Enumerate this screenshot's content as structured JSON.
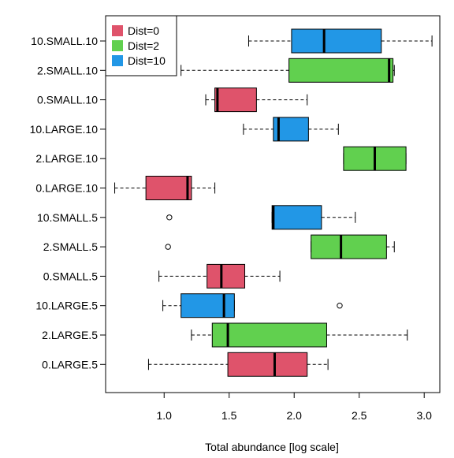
{
  "chart_data": {
    "type": "boxplot",
    "orientation": "horizontal",
    "xlabel": "Total abundance [log scale]",
    "ylabel": "",
    "xlim": [
      0.55,
      3.12
    ],
    "x_ticks": [
      1.0,
      1.5,
      2.0,
      2.5,
      3.0
    ],
    "x_tick_labels": [
      "1.0",
      "1.5",
      "2.0",
      "2.5",
      "3.0"
    ],
    "grid": false,
    "legend_position": "top-left",
    "legend": [
      {
        "label": "Dist=0",
        "color": "#DF536B"
      },
      {
        "label": "Dist=2",
        "color": "#61D04F"
      },
      {
        "label": "Dist=10",
        "color": "#2297E6"
      }
    ],
    "categories": [
      "0.LARGE.5",
      "2.LARGE.5",
      "10.LARGE.5",
      "0.SMALL.5",
      "2.SMALL.5",
      "10.SMALL.5",
      "0.LARGE.10",
      "2.LARGE.10",
      "10.LARGE.10",
      "0.SMALL.10",
      "2.SMALL.10",
      "10.SMALL.10"
    ],
    "boxes": [
      {
        "category": "0.LARGE.5",
        "group": "Dist=0",
        "whisker_low": 0.88,
        "q1": 1.49,
        "median": 1.85,
        "q3": 2.1,
        "whisker_high": 2.26,
        "outliers": []
      },
      {
        "category": "2.LARGE.5",
        "group": "Dist=2",
        "whisker_low": 1.21,
        "q1": 1.37,
        "median": 1.49,
        "q3": 2.25,
        "whisker_high": 2.87,
        "outliers": []
      },
      {
        "category": "10.LARGE.5",
        "group": "Dist=10",
        "whisker_low": 0.99,
        "q1": 1.13,
        "median": 1.46,
        "q3": 1.54,
        "whisker_high": 1.54,
        "outliers": [
          2.35
        ]
      },
      {
        "category": "0.SMALL.5",
        "group": "Dist=0",
        "whisker_low": 0.96,
        "q1": 1.33,
        "median": 1.44,
        "q3": 1.62,
        "whisker_high": 1.89,
        "outliers": []
      },
      {
        "category": "2.SMALL.5",
        "group": "Dist=2",
        "whisker_low": 2.13,
        "q1": 2.13,
        "median": 2.36,
        "q3": 2.71,
        "whisker_high": 2.77,
        "outliers": [
          1.03
        ]
      },
      {
        "category": "10.SMALL.5",
        "group": "Dist=10",
        "whisker_low": 1.83,
        "q1": 1.83,
        "median": 1.84,
        "q3": 2.21,
        "whisker_high": 2.47,
        "outliers": [
          1.04
        ]
      },
      {
        "category": "0.LARGE.10",
        "group": "Dist=0",
        "whisker_low": 0.62,
        "q1": 0.86,
        "median": 1.18,
        "q3": 1.21,
        "whisker_high": 1.39,
        "outliers": []
      },
      {
        "category": "2.LARGE.10",
        "group": "Dist=2",
        "whisker_low": 2.38,
        "q1": 2.38,
        "median": 2.62,
        "q3": 2.86,
        "whisker_high": 2.86,
        "outliers": []
      },
      {
        "category": "10.LARGE.10",
        "group": "Dist=10",
        "whisker_low": 1.61,
        "q1": 1.84,
        "median": 1.88,
        "q3": 2.11,
        "whisker_high": 2.34,
        "outliers": []
      },
      {
        "category": "0.SMALL.10",
        "group": "Dist=0",
        "whisker_low": 1.32,
        "q1": 1.39,
        "median": 1.41,
        "q3": 1.71,
        "whisker_high": 2.1,
        "outliers": []
      },
      {
        "category": "2.SMALL.10",
        "group": "Dist=2",
        "whisker_low": 1.13,
        "q1": 1.96,
        "median": 2.73,
        "q3": 2.76,
        "whisker_high": 2.77,
        "outliers": []
      },
      {
        "category": "10.SMALL.10",
        "group": "Dist=10",
        "whisker_low": 1.65,
        "q1": 1.98,
        "median": 2.23,
        "q3": 2.67,
        "whisker_high": 3.06,
        "outliers": []
      }
    ]
  }
}
